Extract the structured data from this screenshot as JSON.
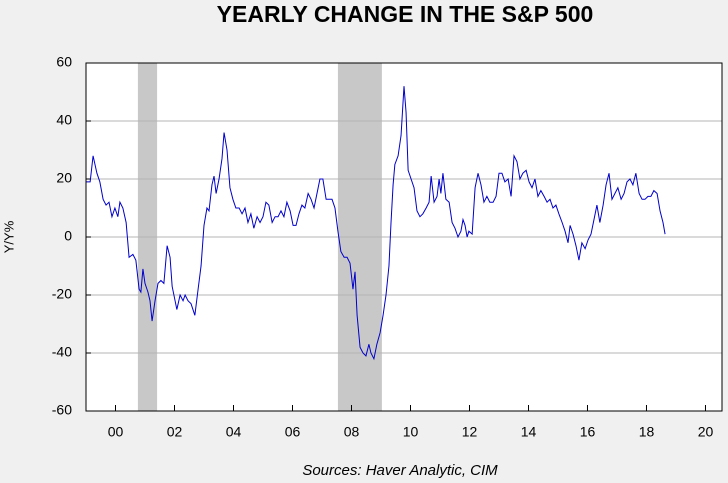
{
  "chart_data": {
    "type": "line",
    "title": "YEARLY CHANGE IN THE S&P 500",
    "y_label": "Y/Y%",
    "source": "Sources:  Haver Analytic, CIM",
    "color": "#0000cc",
    "shade_color": "#c8c8c8",
    "grid": true,
    "shaded_periods": [
      [
        2000.76,
        2001.41
      ],
      [
        2007.54,
        2009.03
      ]
    ],
    "xlim": [
      1999,
      2020.56
    ],
    "ylim": [
      -60,
      60
    ],
    "yticks": [
      -60,
      -40,
      -20,
      0,
      20,
      40,
      60
    ],
    "xticks": [
      {
        "value": 2000,
        "label": "00"
      },
      {
        "value": 2002,
        "label": "02"
      },
      {
        "value": 2004,
        "label": "04"
      },
      {
        "value": 2006,
        "label": "06"
      },
      {
        "value": 2008,
        "label": "08"
      },
      {
        "value": 2010,
        "label": "10"
      },
      {
        "value": 2012,
        "label": "12"
      },
      {
        "value": 2014,
        "label": "14"
      },
      {
        "value": 2016,
        "label": "16"
      },
      {
        "value": 2018,
        "label": "18"
      },
      {
        "value": 2020,
        "label": "20"
      }
    ],
    "x": [
      1999.0,
      1999.14,
      1999.24,
      1999.37,
      1999.47,
      1999.58,
      1999.68,
      1999.78,
      1999.88,
      1999.98,
      2000.08,
      2000.15,
      2000.25,
      2000.36,
      2000.46,
      2000.59,
      2000.69,
      2000.8,
      2000.86,
      2000.93,
      2001.0,
      2001.1,
      2001.17,
      2001.24,
      2001.34,
      2001.44,
      2001.54,
      2001.64,
      2001.75,
      2001.85,
      2001.92,
      2002.02,
      2002.08,
      2002.19,
      2002.29,
      2002.36,
      2002.46,
      2002.56,
      2002.69,
      2002.8,
      2002.9,
      2003.0,
      2003.1,
      2003.17,
      2003.27,
      2003.34,
      2003.41,
      2003.51,
      2003.61,
      2003.68,
      2003.78,
      2003.88,
      2003.98,
      2004.08,
      2004.19,
      2004.29,
      2004.39,
      2004.49,
      2004.59,
      2004.69,
      2004.8,
      2004.9,
      2005.0,
      2005.1,
      2005.2,
      2005.31,
      2005.41,
      2005.51,
      2005.61,
      2005.71,
      2005.81,
      2005.92,
      2006.02,
      2006.12,
      2006.22,
      2006.32,
      2006.42,
      2006.53,
      2006.63,
      2006.73,
      2006.83,
      2006.93,
      2007.03,
      2007.14,
      2007.24,
      2007.34,
      2007.44,
      2007.54,
      2007.64,
      2007.75,
      2007.85,
      2007.95,
      2008.05,
      2008.12,
      2008.19,
      2008.29,
      2008.39,
      2008.49,
      2008.59,
      2008.66,
      2008.76,
      2008.86,
      2008.97,
      2009.07,
      2009.17,
      2009.27,
      2009.34,
      2009.41,
      2009.47,
      2009.58,
      2009.68,
      2009.78,
      2009.85,
      2009.92,
      2010.02,
      2010.12,
      2010.22,
      2010.32,
      2010.42,
      2010.53,
      2010.63,
      2010.7,
      2010.8,
      2010.9,
      2010.97,
      2011.03,
      2011.1,
      2011.2,
      2011.31,
      2011.41,
      2011.51,
      2011.61,
      2011.71,
      2011.78,
      2011.85,
      2011.92,
      2011.98,
      2012.09,
      2012.19,
      2012.29,
      2012.39,
      2012.49,
      2012.59,
      2012.69,
      2012.8,
      2012.9,
      2013.0,
      2013.1,
      2013.2,
      2013.31,
      2013.41,
      2013.51,
      2013.61,
      2013.71,
      2013.81,
      2013.92,
      2014.02,
      2014.12,
      2014.22,
      2014.32,
      2014.42,
      2014.53,
      2014.63,
      2014.73,
      2014.83,
      2014.93,
      2015.03,
      2015.14,
      2015.24,
      2015.34,
      2015.41,
      2015.51,
      2015.61,
      2015.71,
      2015.81,
      2015.92,
      2016.02,
      2016.12,
      2016.22,
      2016.32,
      2016.42,
      2016.53,
      2016.63,
      2016.73,
      2016.83,
      2016.93,
      2017.03,
      2017.14,
      2017.24,
      2017.34,
      2017.44,
      2017.54,
      2017.64,
      2017.75,
      2017.85,
      2017.95,
      2018.05,
      2018.15,
      2018.25,
      2018.36,
      2018.46,
      2018.56,
      2018.63
    ],
    "values": [
      19,
      19,
      28,
      22,
      19,
      13,
      11,
      12,
      7,
      10,
      7,
      12,
      10,
      5,
      -7,
      -6,
      -8,
      -18,
      -19,
      -11,
      -16,
      -19,
      -22,
      -29,
      -22,
      -16,
      -15,
      -16,
      -3,
      -7,
      -17,
      -22,
      -25,
      -20,
      -22,
      -20,
      -22,
      -23,
      -27,
      -18,
      -10,
      4,
      10,
      9,
      18,
      21,
      15,
      20,
      27,
      36,
      30,
      17,
      13,
      10,
      10,
      8,
      10,
      5,
      8,
      3,
      7,
      5,
      7,
      12,
      11,
      5,
      7,
      7,
      9,
      7,
      12,
      9,
      4,
      4,
      8,
      11,
      10,
      15,
      13,
      10,
      15,
      20,
      20,
      13,
      13,
      13,
      10,
      2,
      -5,
      -7,
      -7,
      -9,
      -18,
      -12,
      -27,
      -38,
      -40,
      -41,
      -37,
      -40,
      -42,
      -37,
      -33,
      -27,
      -20,
      -10,
      5,
      18,
      25,
      28,
      35,
      52,
      43,
      23,
      20,
      17,
      9,
      7,
      8,
      10,
      12,
      21,
      12,
      14,
      20,
      15,
      22,
      13,
      12,
      5,
      3,
      0,
      2,
      6,
      4,
      0,
      2,
      1,
      17,
      22,
      18,
      12,
      14,
      12,
      12,
      14,
      22,
      22,
      19,
      20,
      14,
      28,
      26,
      20,
      22,
      23,
      19,
      17,
      20,
      14,
      16,
      14,
      12,
      13,
      10,
      11,
      8,
      5,
      2,
      -2,
      4,
      1,
      -3,
      -8,
      -2,
      -4,
      -1,
      1,
      6,
      11,
      5,
      11,
      18,
      22,
      13,
      15,
      17,
      13,
      15,
      19,
      20,
      18,
      22,
      15,
      13,
      13,
      14,
      14,
      16,
      15,
      9,
      5,
      1
    ]
  }
}
